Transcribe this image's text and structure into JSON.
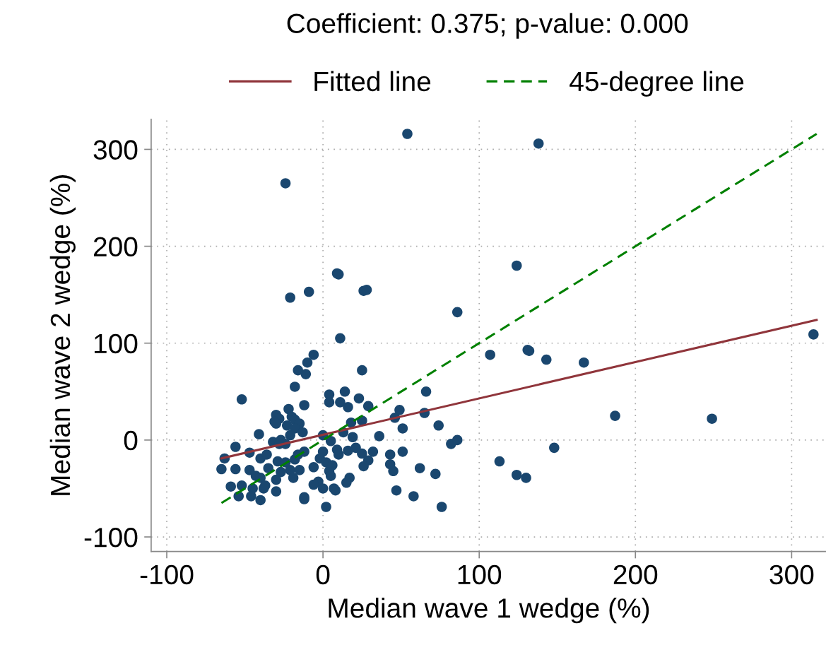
{
  "chart_data": {
    "type": "scatter",
    "title": "Coefficient: 0.375; p-value: 0.000",
    "xlabel": "Median wave 1 wedge (%)",
    "ylabel": "Median wave 2 wedge (%)",
    "xlim": [
      -110,
      322
    ],
    "ylim": [
      -115,
      331
    ],
    "xticks": [
      {
        "value": -100,
        "label": "-100"
      },
      0,
      100,
      200,
      300
    ],
    "yticks": [
      {
        "value": -100,
        "label": "-100"
      },
      0,
      100,
      200,
      300
    ],
    "grid": true,
    "legend": "top",
    "series": [
      {
        "marker": "circle",
        "color": "#1a476f",
        "x": [
          54,
          138,
          -24,
          124,
          86,
          9,
          10,
          26,
          28,
          -21,
          -9,
          11,
          107,
          131,
          132,
          143,
          167,
          314,
          187,
          249,
          148,
          113,
          124,
          130,
          66,
          65,
          74,
          49,
          46,
          51,
          36,
          82,
          86,
          72,
          62,
          76,
          58,
          47,
          51,
          43,
          43,
          45,
          32,
          29,
          25,
          25,
          18,
          23,
          14,
          4,
          4,
          11,
          16,
          13,
          19,
          0,
          5,
          25,
          29,
          26,
          16,
          21,
          9,
          10,
          0,
          -2,
          2,
          6,
          -6,
          4,
          5,
          17,
          15,
          -3,
          -6,
          0,
          7,
          8,
          2,
          -12,
          -6,
          -10,
          -11,
          -12,
          -52,
          -18,
          -16,
          -22,
          -30,
          -28,
          -31,
          -30,
          -23,
          -20,
          -18,
          -15,
          -18,
          -13,
          -21,
          -41,
          -32,
          -27,
          -24,
          -28,
          -56,
          -47,
          -63,
          -40,
          -36,
          -29,
          -24,
          -18,
          -16,
          -12,
          -65,
          -56,
          -47,
          -35,
          -27,
          -21,
          -15,
          -43,
          -40,
          -30,
          -19,
          -59,
          -52,
          -45,
          -38,
          -37,
          -54,
          -46,
          -40,
          -30,
          -12
        ],
        "values": [
          316,
          306,
          265,
          180,
          132,
          172,
          171,
          154,
          155,
          147,
          153,
          105,
          88,
          93,
          92,
          83,
          80,
          109,
          25,
          22,
          -8,
          -22,
          -36,
          -39,
          50,
          28,
          15,
          31,
          23,
          12,
          4,
          -4,
          0,
          -35,
          -29,
          -69,
          -58,
          -52,
          -12,
          -15,
          -25,
          -32,
          -12,
          35,
          72,
          20,
          18,
          43,
          50,
          47,
          39,
          39,
          34,
          8,
          3,
          5,
          -1,
          -14,
          -21,
          -27,
          -11,
          -8,
          -10,
          -15,
          -12,
          -19,
          -23,
          -26,
          -28,
          -32,
          -37,
          -39,
          -44,
          -43,
          -46,
          -50,
          -50,
          -52,
          -69,
          -61,
          88,
          80,
          68,
          36,
          42,
          55,
          72,
          32,
          26,
          22,
          19,
          17,
          15,
          24,
          21,
          17,
          12,
          8,
          5,
          6,
          -2,
          0,
          -4,
          -4,
          -7,
          -13,
          -19,
          -19,
          -15,
          -22,
          -23,
          -20,
          -15,
          -12,
          -30,
          -30,
          -31,
          -29,
          -33,
          -31,
          -31,
          -37,
          -39,
          -41,
          -39,
          -48,
          -47,
          -50,
          -50,
          -47,
          -58,
          -58,
          -62,
          -53,
          -59
        ]
      },
      {
        "type": "line",
        "name": "Fitted line",
        "color": "#90353b",
        "line_style": "solid",
        "x": [
          -65,
          316
        ],
        "values": [
          -18.9,
          124
        ]
      },
      {
        "type": "line",
        "name": "45-degree line",
        "color": "#008000",
        "line_style": "dashed",
        "x": [
          -65,
          316
        ],
        "values": [
          -65,
          316
        ]
      }
    ]
  }
}
